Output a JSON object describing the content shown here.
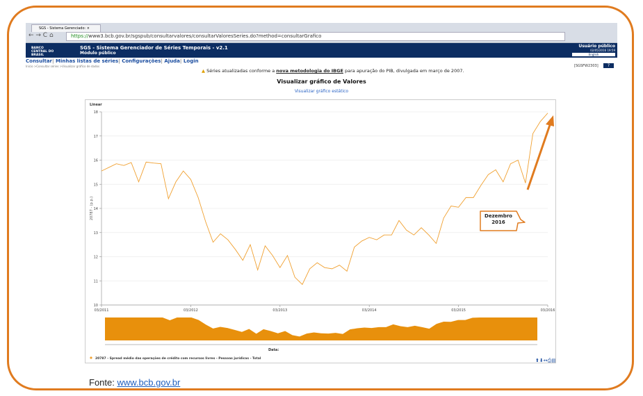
{
  "browser": {
    "tab_title": "SGS - Sistema Gerenciado: ×",
    "url_protocol": "https://",
    "url_rest": "www3.bcb.gov.br/sgspub/consultarvalores/consultarValoresSeries.do?method=consultarGrafico"
  },
  "header": {
    "bank": "BANCO CENTRAL DO BRASIL",
    "title": "SGS - Sistema Gerenciador de Séries Temporais - v2.1",
    "subtitle": "Módulo público",
    "user": "Usuário público",
    "datetime": "02/05/2016 19:59",
    "language": "English"
  },
  "menu": [
    "Consultar",
    "Minhas listas de séries",
    "Configurações",
    "Ajuda",
    "Login"
  ],
  "breadcrumb": "Início >Consultar séries >Visualizar gráfico de dados",
  "page_code": "[SGSFW2303]",
  "help": "?",
  "notice": {
    "before": "Séries atualizadas conforme a",
    "link": "nova metodologia do IBGE",
    "after": "para apuração do PIB, divulgada em março de 2007."
  },
  "heading": "Visualizar gráfico de Valores",
  "static_link": "Visualizar gráfico estático",
  "chart_data": {
    "type": "line",
    "scale_button": "Linear",
    "y_label": "20787 - (p.p.)",
    "x_label": "Data:",
    "categories": [
      "03/2011",
      null,
      null,
      null,
      null,
      null,
      null,
      null,
      null,
      null,
      null,
      null,
      "03/2012",
      null,
      null,
      null,
      null,
      null,
      null,
      null,
      null,
      null,
      null,
      null,
      "03/2013",
      null,
      null,
      null,
      null,
      null,
      null,
      null,
      null,
      null,
      null,
      null,
      "03/2014",
      null,
      null,
      null,
      null,
      null,
      null,
      null,
      null,
      null,
      null,
      null,
      "03/2015",
      null,
      null,
      null,
      null,
      null,
      null,
      null,
      null,
      null,
      null,
      null,
      "03/2016"
    ],
    "series": [
      {
        "name": "20787 - Spread médio das operações de crédito com recursos livres - Pessoas jurídicas - Total",
        "color": "#f0a030",
        "values": [
          15.55,
          15.7,
          15.85,
          15.78,
          15.9,
          15.1,
          15.92,
          15.88,
          15.85,
          14.4,
          15.1,
          15.55,
          15.2,
          14.45,
          13.45,
          12.6,
          12.95,
          12.7,
          12.3,
          11.85,
          12.5,
          11.45,
          12.45,
          12.05,
          11.55,
          12.05,
          11.15,
          10.85,
          11.5,
          11.75,
          11.55,
          11.5,
          11.65,
          11.4,
          12.4,
          12.65,
          12.8,
          12.7,
          12.9,
          12.9,
          13.5,
          13.1,
          12.9,
          13.2,
          12.9,
          12.55,
          13.6,
          14.1,
          14.05,
          14.45,
          14.45,
          14.95,
          15.4,
          15.6,
          15.1,
          15.85,
          16.0,
          15.05,
          17.1,
          17.6,
          17.95
        ]
      }
    ],
    "ylim": [
      10,
      18
    ],
    "yticks": [
      10,
      11,
      12,
      13,
      14,
      15,
      16,
      17,
      18
    ],
    "grid": true,
    "annotation": [
      "Dezembro",
      "2016"
    ]
  },
  "source": {
    "label": "Fonte:",
    "link": "www.bcb.gov.br"
  }
}
